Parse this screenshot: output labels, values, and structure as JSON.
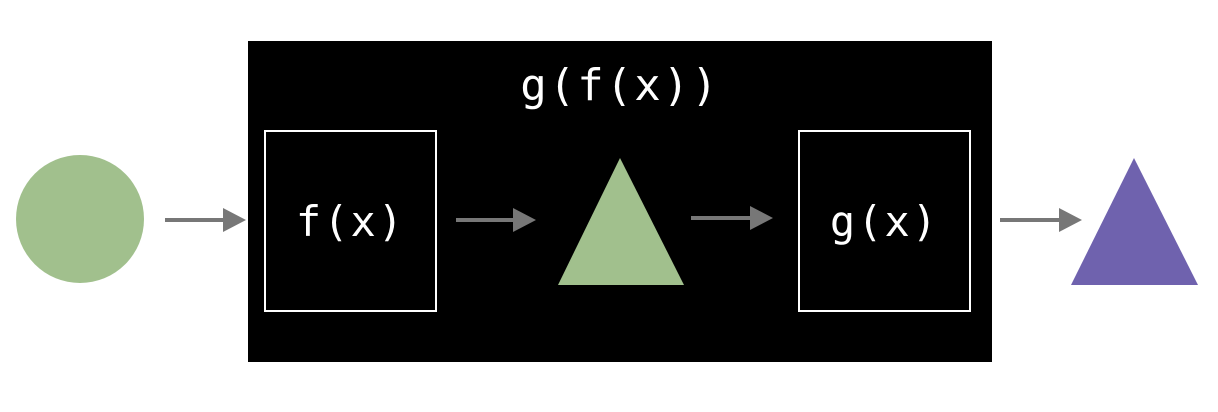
{
  "diagram": {
    "composite_label": "g(f(x))",
    "f_label": "f(x)",
    "g_label": "g(x)",
    "input_shape": "circle",
    "intermediate_shape": "triangle",
    "output_shape": "triangle"
  },
  "colors": {
    "green": "#a1c08d",
    "purple": "#6f62ae",
    "arrow": "#777777",
    "box_bg": "#000000",
    "box_border": "#ffffff",
    "text": "#ffffff"
  }
}
